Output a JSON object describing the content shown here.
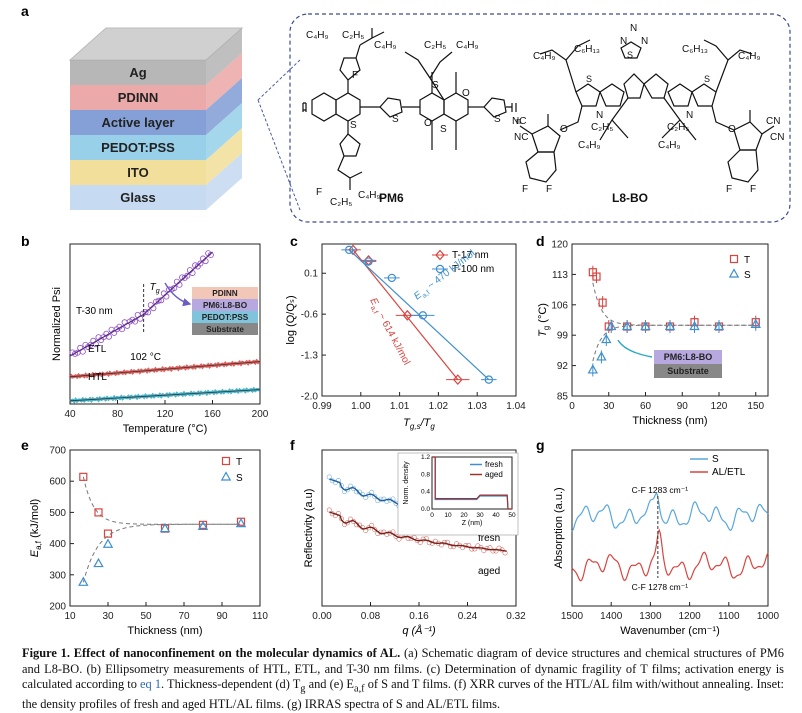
{
  "panel_letters": [
    "a",
    "b",
    "c",
    "d",
    "e",
    "f",
    "g"
  ],
  "panel_a": {
    "stack_layers": [
      "Ag",
      "PDINN",
      "Active layer",
      "PEDOT:PSS",
      "ITO",
      "Glass"
    ],
    "molecules": [
      "PM6",
      "L8-BO"
    ],
    "pm6_labels": {
      "c4h9": "C₄H₉",
      "c2h5": "C₂H₅",
      "s": "S",
      "f": "F",
      "o": "O",
      "n_sub": "n"
    },
    "l8bo_labels": {
      "c4h9": "C₄H₉",
      "c6h13": "C₆H₁₃",
      "c2h5": "C₂H₅",
      "s": "S",
      "n": "N",
      "o": "O",
      "f": "F",
      "nc": "NC",
      "cn": "CN"
    }
  },
  "chart_data": [
    {
      "panel": "b",
      "type": "line",
      "xlabel": "Temperature (°C)",
      "ylabel": "Normalized Psi",
      "xlim": [
        40,
        200
      ],
      "xticks": [
        40,
        80,
        120,
        160,
        200
      ],
      "series": [
        {
          "name": "T-30 nm",
          "color": "#8e4fc7",
          "x": [
            40,
            102,
            160
          ],
          "y": [
            0.3,
            0.56,
            0.95
          ]
        },
        {
          "name": "ETL",
          "color": "#d9443f",
          "x": [
            40,
            200
          ],
          "y": [
            0.17,
            0.265
          ]
        },
        {
          "name": "HTL",
          "color": "#29a9c4",
          "x": [
            40,
            200
          ],
          "y": [
            0.02,
            0.09
          ]
        }
      ],
      "annotations": [
        "T-30 nm",
        "T",
        "g",
        "102 °C",
        "ETL",
        "HTL"
      ],
      "inset_layers": [
        "PDINN",
        "PM6:L8-BO",
        "PEDOT:PSS",
        "Substrate"
      ]
    },
    {
      "panel": "c",
      "type": "scatter",
      "xlabel_main": "T",
      "xlabel_sub": "g,s",
      "xlabel_rest": "/T",
      "xlabel_sub2": "g",
      "ylabel": "log (Q/Qₛ)",
      "xlim": [
        0.99,
        1.04
      ],
      "ylim": [
        -2.0,
        0.6
      ],
      "xticks": [
        0.99,
        1.0,
        1.01,
        1.02,
        1.03,
        1.04
      ],
      "yticks": [
        0.1,
        -0.6,
        -1.3,
        -2.0
      ],
      "series": [
        {
          "name": "T-17 nm",
          "color": "#d9443f",
          "marker": "diamond",
          "x": [
            0.998,
            1.002,
            1.012,
            1.025
          ],
          "y": [
            0.5,
            0.32,
            -0.62,
            -1.72
          ],
          "xerr": [
            0.002,
            0.002,
            0.003,
            0.003
          ]
        },
        {
          "name": "T-100 nm",
          "color": "#3f8fd0",
          "marker": "circle",
          "x": [
            0.997,
            1.002,
            1.008,
            1.016,
            1.033
          ],
          "y": [
            0.5,
            0.3,
            0.02,
            -0.62,
            -1.72
          ],
          "xerr": [
            0.002,
            0.002,
            0.002,
            0.003,
            0.002
          ]
        }
      ],
      "fit_labels": [
        "E",
        "a,f",
        "~ 470 kJ/mol",
        "E",
        "a,f",
        "~ 614 kJ/mol"
      ]
    },
    {
      "panel": "d",
      "type": "scatter",
      "xlabel": "Thickness (nm)",
      "ylabel_main": "T",
      "ylabel_sub": "g",
      "ylabel_rest": " (°C)",
      "xlim": [
        0,
        160
      ],
      "ylim": [
        85,
        120
      ],
      "xticks": [
        0,
        30,
        60,
        90,
        120,
        150
      ],
      "yticks": [
        85,
        92,
        99,
        106,
        113,
        120
      ],
      "series": [
        {
          "name": "T",
          "color": "#d9443f",
          "marker": "square",
          "x": [
            17,
            20,
            25,
            30,
            45,
            60,
            80,
            100,
            120,
            150
          ],
          "y": [
            113.5,
            112.5,
            106.5,
            101,
            101,
            101,
            101,
            102,
            101,
            102
          ],
          "err": 1.5
        },
        {
          "name": "S",
          "color": "#3f8fd0",
          "marker": "triangle",
          "x": [
            17,
            24,
            28,
            32,
            45,
            60,
            80,
            100,
            120,
            150
          ],
          "y": [
            91,
            94,
            98,
            101,
            101,
            101,
            101,
            101,
            101,
            101.5
          ],
          "err": 1.5
        }
      ],
      "inset_layers": [
        "PM6:L8-BO",
        "Substrate"
      ]
    },
    {
      "panel": "e",
      "type": "scatter",
      "xlabel": "Thickness (nm)",
      "ylabel_main": "E",
      "ylabel_sub": "a,f",
      "ylabel_rest": " (kJ/mol)",
      "xlim": [
        10,
        110
      ],
      "ylim": [
        200,
        700
      ],
      "xticks": [
        10,
        30,
        50,
        70,
        90,
        110
      ],
      "yticks": [
        200,
        300,
        400,
        500,
        600,
        700
      ],
      "series": [
        {
          "name": "T",
          "color": "#d9443f",
          "marker": "square",
          "x": [
            17,
            25,
            30,
            60,
            80,
            100
          ],
          "y": [
            614,
            500,
            432,
            448,
            460,
            470
          ]
        },
        {
          "name": "S",
          "color": "#3f8fd0",
          "marker": "triangle",
          "x": [
            17,
            25,
            30,
            60,
            80,
            100
          ],
          "y": [
            276,
            336,
            398,
            448,
            455,
            464
          ]
        }
      ]
    },
    {
      "panel": "f",
      "type": "line",
      "xlabel": "q (Å⁻¹)",
      "ylabel": "Reflectivity (a.u)",
      "xlim": [
        0,
        0.32
      ],
      "xticks": [
        0.0,
        0.08,
        0.16,
        0.24,
        0.32
      ],
      "series": [
        {
          "name": "fresh",
          "color": "#3f8fd0"
        },
        {
          "name": "aged",
          "color": "#c0392b"
        }
      ],
      "labels": [
        "fresh",
        "aged"
      ],
      "inset": {
        "xlabel": "Z (nm)",
        "ylabel": "Norm. density",
        "xticks": [
          0,
          10,
          20,
          30,
          40,
          50
        ],
        "yticks": [
          0.0,
          0.4,
          0.8,
          1.2
        ],
        "legend": [
          "fresh",
          "aged"
        ]
      }
    },
    {
      "panel": "g",
      "type": "line",
      "xlabel": "Wavenumber (cm⁻¹)",
      "ylabel": "Absorption (a.u.)",
      "xlim": [
        1500,
        1000
      ],
      "xticks": [
        1500,
        1400,
        1300,
        1200,
        1100,
        1000
      ],
      "series": [
        {
          "name": "S",
          "color": "#5aa7dc"
        },
        {
          "name": "AL/ETL",
          "color": "#d9443f"
        }
      ],
      "peak_labels": [
        "C-F 1283 cm⁻¹",
        "C-F 1278 cm⁻¹"
      ]
    }
  ],
  "caption": {
    "figure_label": "Figure 1.",
    "title": " Effect of nanoconfinement on the molecular dynamics of AL.",
    "text1": " (a) Schematic diagram of device structures and chemical structures of PM6 and L8-BO. (b) Ellipsometry measurements of HTL, ETL, and T-30 nm films. (c) Determination of dynamic fragility of T films; activation energy is calculated according to ",
    "eq_ref": "eq 1",
    "text2": ". Thickness-dependent (d) T",
    "text2_sub": "g",
    "text3": " and (e) E",
    "text3_sub": "a,f",
    "text4": " of S and T films. (f) XRR curves of the HTL/AL film with/without annealing. Inset: the density profiles of fresh and aged HTL/AL films. (g) IRRAS spectra of S and AL/ETL films."
  }
}
